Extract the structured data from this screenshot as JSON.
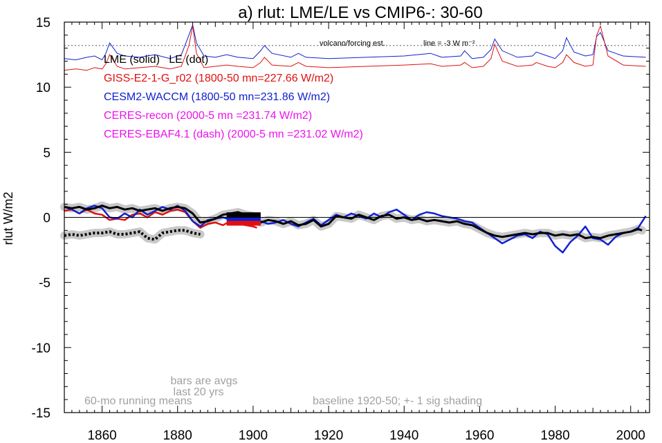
{
  "chart_data": {
    "type": "line",
    "title": "a) rlut: LME/LE vs CMIP6-: 30-60",
    "ylabel": "rlut W/m2",
    "xlabel": "",
    "xlim": [
      1850,
      2005
    ],
    "ylim": [
      -15,
      15
    ],
    "xticks": [
      1860,
      1880,
      1900,
      1920,
      1940,
      1960,
      1980,
      2000
    ],
    "yticks": [
      -15,
      -10,
      -5,
      0,
      5,
      10,
      15
    ],
    "grid": false,
    "zero_line": 0,
    "reference_line": {
      "y": 13.2,
      "label": "volcano/forcing est.",
      "scale_note": "line = -3 W m⁻²"
    },
    "legend": {
      "placement": "top-left",
      "entries": [
        {
          "text": "LME (solid)   LE (dot)",
          "color": "#000000"
        },
        {
          "text": "GISS-E2-1-G_r02 (1800-50 mn=227.66 W/m2)",
          "color": "#e01010"
        },
        {
          "text": "CESM2-WACCM (1800-50 mn=231.86 W/m2)",
          "color": "#1020d0"
        },
        {
          "text": "CERES-recon (2000-5 mn =231.74 W/m2)",
          "color": "#ee10ee"
        },
        {
          "text": "CERES-EBAF4.1 (dash) (2000-5 mn =231.02 W/m2)",
          "color": "#ee10ee"
        }
      ]
    },
    "annotations": [
      {
        "text": "bars are avgs",
        "x": 1884,
        "y": -12.6
      },
      {
        "text": "last 20 yrs",
        "x": 1884,
        "y": -13.5
      },
      {
        "text": "60-mo running means",
        "x": 1872,
        "y": -14.3
      },
      {
        "text": "baseline 1920-50; +- 1 sig shading",
        "x": 1933,
        "y": -14.3
      }
    ],
    "series": [
      {
        "name": "LME (solid)",
        "color": "#000000",
        "style": "solid",
        "width": 3,
        "x": [
          1850,
          1852,
          1854,
          1856,
          1858,
          1860,
          1862,
          1864,
          1866,
          1868,
          1870,
          1872,
          1874,
          1876,
          1878,
          1880,
          1882,
          1884,
          1886,
          1888,
          1890,
          1892,
          1894,
          1896,
          1898,
          1900,
          1902,
          1904,
          1906,
          1908,
          1910,
          1912,
          1914,
          1916,
          1918,
          1920,
          1922,
          1924,
          1926,
          1928,
          1930,
          1932,
          1934,
          1936,
          1938,
          1940,
          1942,
          1944,
          1946,
          1948,
          1950,
          1952,
          1954,
          1956,
          1958,
          1960,
          1962,
          1964,
          1966,
          1968,
          1970,
          1972,
          1974,
          1976,
          1978,
          1980,
          1982,
          1984,
          1986,
          1988,
          1990,
          1992,
          1994,
          1996,
          1998,
          2000,
          2002,
          2003
        ],
        "y": [
          0.8,
          0.7,
          0.8,
          0.6,
          0.7,
          0.9,
          0.7,
          0.8,
          0.6,
          0.7,
          0.5,
          0.6,
          0.7,
          0.5,
          0.7,
          0.8,
          0.7,
          0.3,
          -0.4,
          -0.3,
          -0.1,
          0.2,
          0.3,
          0.4,
          0.2,
          0.1,
          -0.4,
          -0.2,
          -0.3,
          -0.5,
          -0.3,
          -0.6,
          -0.5,
          -0.2,
          -0.7,
          -0.5,
          0.1,
          0.0,
          -0.1,
          0.2,
          0.0,
          -0.2,
          0.1,
          0.2,
          -0.1,
          0.0,
          -0.2,
          -0.1,
          -0.3,
          -0.2,
          -0.3,
          -0.4,
          -0.3,
          -0.5,
          -0.6,
          -0.9,
          -1.2,
          -1.4,
          -1.5,
          -1.4,
          -1.3,
          -1.2,
          -1.3,
          -1.2,
          -1.2,
          -1.4,
          -1.3,
          -1.4,
          -1.3,
          -1.6,
          -1.5,
          -1.6,
          -1.4,
          -1.3,
          -1.2,
          -1.1,
          -0.9,
          -1.0
        ]
      },
      {
        "name": "LE (dot)",
        "color": "#000000",
        "style": "dot",
        "width": 4,
        "x": [
          1850,
          1852,
          1854,
          1856,
          1858,
          1860,
          1862,
          1864,
          1866,
          1868,
          1870,
          1872,
          1874,
          1876,
          1878,
          1880,
          1882,
          1884,
          1886
        ],
        "y": [
          -1.4,
          -1.3,
          -1.4,
          -1.3,
          -1.2,
          -1.2,
          -1.1,
          -1.3,
          -1.3,
          -1.2,
          -1.1,
          -1.6,
          -1.7,
          -1.2,
          -1.1,
          -1.0,
          -1.0,
          -1.2,
          -1.3
        ]
      },
      {
        "name": "GISS-E2-1-G_r02",
        "color": "#e01010",
        "style": "solid",
        "width": 2.5,
        "x": [
          1850,
          1852,
          1854,
          1856,
          1858,
          1860,
          1862,
          1864,
          1866,
          1868,
          1870,
          1872,
          1874,
          1876,
          1878,
          1880,
          1882,
          1884,
          1886,
          1888,
          1890,
          1892,
          1894,
          1896,
          1898,
          1900,
          1901
        ],
        "y": [
          0.5,
          0.6,
          0.3,
          0.6,
          0.3,
          0.2,
          -0.2,
          -0.1,
          -0.2,
          0.2,
          0.3,
          0.0,
          0.4,
          0.2,
          0.5,
          0.6,
          0.4,
          -0.3,
          -0.8,
          -0.5,
          -0.4,
          -0.6,
          -0.3,
          -0.5,
          -0.6,
          -0.7,
          -0.8
        ]
      },
      {
        "name": "CESM2-WACCM",
        "color": "#1020d0",
        "style": "solid",
        "width": 2.5,
        "x": [
          1850,
          1852,
          1854,
          1856,
          1858,
          1860,
          1862,
          1864,
          1866,
          1868,
          1870,
          1872,
          1874,
          1876,
          1878,
          1880,
          1882,
          1884,
          1886,
          1888,
          1890,
          1892,
          1894,
          1896,
          1898,
          1900,
          1902,
          1904,
          1906,
          1908,
          1910,
          1912,
          1914,
          1916,
          1918,
          1920,
          1922,
          1924,
          1926,
          1928,
          1930,
          1932,
          1934,
          1936,
          1938,
          1940,
          1942,
          1944,
          1946,
          1948,
          1950,
          1952,
          1954,
          1956,
          1958,
          1960,
          1962,
          1964,
          1966,
          1968,
          1970,
          1972,
          1974,
          1976,
          1978,
          1980,
          1982,
          1984,
          1986,
          1988,
          1990,
          1992,
          1994,
          1996,
          1998,
          2000,
          2002,
          2004
        ],
        "y": [
          0.8,
          0.6,
          0.3,
          0.7,
          0.9,
          0.7,
          0.0,
          -0.1,
          0.3,
          0.0,
          0.6,
          0.2,
          0.5,
          0.8,
          0.6,
          0.9,
          0.5,
          -0.3,
          -0.7,
          -0.2,
          -0.1,
          0.0,
          -0.2,
          -0.3,
          -0.1,
          -0.4,
          -0.3,
          -0.5,
          -0.4,
          -0.2,
          -0.5,
          -0.7,
          -0.4,
          -0.1,
          -0.6,
          -0.2,
          0.2,
          0.0,
          0.3,
          0.1,
          -0.1,
          0.3,
          0.0,
          0.4,
          0.6,
          0.2,
          -0.2,
          0.2,
          0.4,
          0.3,
          0.1,
          0.0,
          -0.1,
          -0.3,
          -0.4,
          -0.8,
          -1.2,
          -1.6,
          -2.0,
          -1.7,
          -1.4,
          -1.3,
          -1.6,
          -1.1,
          -1.3,
          -2.2,
          -2.7,
          -1.9,
          -1.4,
          -0.7,
          -1.6,
          -1.7,
          -2.1,
          -1.5,
          -1.2,
          -1.1,
          -0.8,
          0.1
        ]
      }
    ],
    "volcano_estimate": {
      "color_cesm": "#1020d0",
      "color_giss": "#e01010",
      "x": [
        1850,
        1853,
        1856,
        1858,
        1860,
        1861,
        1862,
        1864,
        1866,
        1870,
        1874,
        1878,
        1881,
        1883,
        1884,
        1885,
        1887,
        1890,
        1893,
        1896,
        1900,
        1902,
        1903,
        1905,
        1910,
        1912,
        1914,
        1920,
        1930,
        1940,
        1947,
        1950,
        1955,
        1956,
        1958,
        1961,
        1963,
        1964,
        1966,
        1970,
        1974,
        1975,
        1978,
        1980,
        1982,
        1983,
        1985,
        1988,
        1990,
        1991,
        1992,
        1994,
        1998,
        2004
      ],
      "cesm": [
        12.2,
        12.1,
        12.3,
        12.4,
        12.1,
        12.6,
        13.4,
        12.6,
        12.4,
        12.3,
        12.5,
        12.2,
        12.5,
        14.0,
        14.8,
        13.4,
        12.4,
        12.3,
        12.5,
        12.3,
        12.2,
        12.8,
        13.2,
        12.6,
        12.3,
        12.6,
        12.3,
        12.2,
        12.3,
        12.4,
        12.6,
        12.3,
        12.4,
        12.8,
        12.2,
        12.3,
        12.9,
        13.7,
        12.8,
        12.3,
        12.4,
        12.7,
        12.4,
        12.2,
        12.8,
        13.8,
        12.7,
        12.4,
        12.5,
        13.9,
        14.2,
        12.8,
        12.4,
        12.3
      ],
      "giss": [
        11.3,
        11.4,
        11.3,
        11.5,
        11.4,
        11.8,
        12.5,
        11.6,
        11.4,
        11.5,
        11.6,
        11.4,
        11.6,
        13.2,
        14.7,
        12.6,
        11.5,
        11.6,
        11.7,
        11.6,
        11.5,
        11.9,
        12.3,
        11.7,
        11.6,
        11.9,
        11.6,
        11.5,
        11.6,
        11.7,
        11.8,
        11.6,
        11.7,
        11.9,
        11.5,
        11.6,
        12.2,
        13.3,
        12.0,
        11.6,
        11.7,
        11.9,
        11.6,
        11.5,
        11.9,
        12.5,
        11.9,
        11.6,
        11.7,
        14.0,
        14.7,
        12.4,
        11.7,
        11.6
      ]
    },
    "bars": [
      {
        "name": "LME 20-yr avg",
        "color": "#000000",
        "x0": 1893,
        "x1": 1902,
        "y": 0.2
      },
      {
        "name": "CESM2-WACCM 20-yr avg",
        "color": "#1020d0",
        "x0": 1893,
        "x1": 1902,
        "y": -0.15
      },
      {
        "name": "GISS-E2-1-G 20-yr avg",
        "color": "#e01010",
        "x0": 1893,
        "x1": 1902,
        "y": -0.45
      }
    ]
  }
}
